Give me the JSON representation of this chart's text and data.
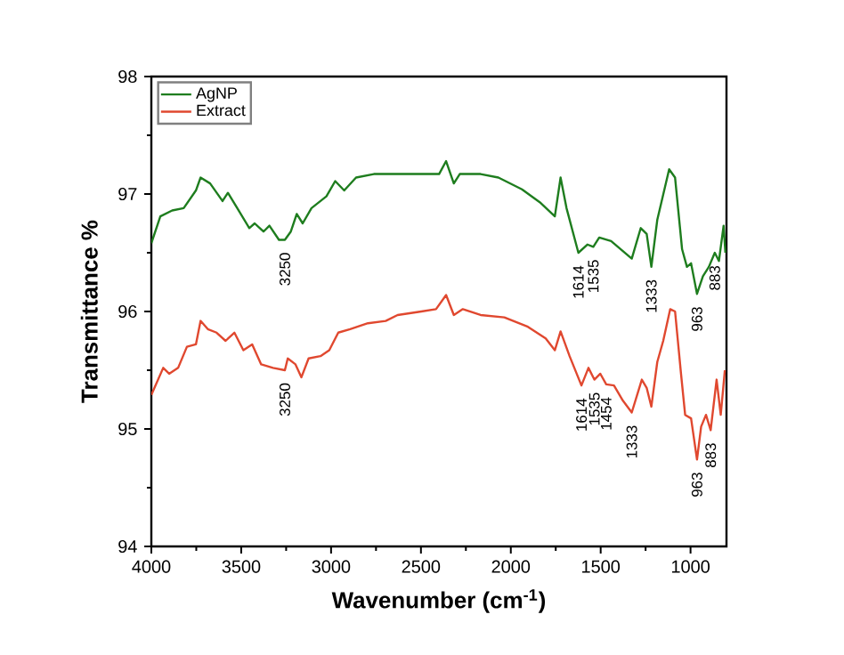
{
  "chart_data": {
    "type": "line",
    "xlabel": "Wavenumber (cm$^{-1}$)",
    "ylabel": "Transmittance %",
    "xlim": [
      4000,
      800
    ],
    "ylim": [
      94,
      98
    ],
    "xticks": [
      4000,
      3500,
      3000,
      2500,
      2000,
      1500,
      1000
    ],
    "yticks": [
      94,
      95,
      96,
      97,
      98
    ],
    "legend": "top left",
    "line_style": "solid",
    "series": [
      {
        "name": "AgNP",
        "color": "#1e7d1e",
        "x": [
          4000,
          3950,
          3884,
          3820,
          3752,
          3726,
          3673,
          3604,
          3574,
          3522,
          3455,
          3425,
          3376,
          3343,
          3290,
          3257,
          3224,
          3191,
          3158,
          3109,
          3026,
          2977,
          2927,
          2861,
          2762,
          2597,
          2399,
          2360,
          2317,
          2284,
          2267,
          2168,
          2069,
          1938,
          1839,
          1755,
          1723,
          1690,
          1624,
          1574,
          1541,
          1508,
          1442,
          1327,
          1277,
          1244,
          1218,
          1185,
          1119,
          1086,
          1047,
          1020,
          997,
          964,
          931,
          898,
          865,
          842,
          816,
          806
        ],
        "values": [
          96.58,
          96.81,
          96.86,
          96.88,
          97.03,
          97.14,
          97.09,
          96.94,
          97.01,
          96.88,
          96.71,
          96.75,
          96.68,
          96.73,
          96.61,
          96.61,
          96.68,
          96.83,
          96.75,
          96.88,
          96.98,
          97.11,
          97.03,
          97.14,
          97.17,
          97.17,
          97.17,
          97.28,
          97.09,
          97.17,
          97.17,
          97.17,
          97.14,
          97.04,
          96.93,
          96.81,
          97.14,
          96.88,
          96.5,
          96.57,
          96.55,
          96.63,
          96.6,
          96.45,
          96.71,
          96.66,
          96.38,
          96.78,
          97.21,
          97.14,
          96.53,
          96.38,
          96.41,
          96.15,
          96.3,
          96.38,
          96.5,
          96.43,
          96.73,
          96.5
        ]
      },
      {
        "name": "Extract",
        "color": "#e0482f",
        "x": [
          4000,
          3934,
          3901,
          3851,
          3802,
          3752,
          3726,
          3686,
          3637,
          3587,
          3538,
          3488,
          3439,
          3389,
          3323,
          3257,
          3241,
          3198,
          3165,
          3125,
          3059,
          3010,
          2960,
          2894,
          2795,
          2696,
          2630,
          2498,
          2416,
          2360,
          2317,
          2267,
          2168,
          2036,
          1905,
          1806,
          1755,
          1723,
          1673,
          1607,
          1568,
          1535,
          1502,
          1469,
          1426,
          1376,
          1327,
          1271,
          1244,
          1218,
          1185,
          1152,
          1113,
          1086,
          1053,
          1030,
          997,
          964,
          941,
          914,
          888,
          855,
          832,
          809
        ],
        "values": [
          95.29,
          95.52,
          95.47,
          95.52,
          95.7,
          95.72,
          95.92,
          95.85,
          95.82,
          95.75,
          95.82,
          95.67,
          95.72,
          95.55,
          95.52,
          95.5,
          95.6,
          95.55,
          95.44,
          95.6,
          95.62,
          95.67,
          95.82,
          95.85,
          95.9,
          95.92,
          95.97,
          96.0,
          96.02,
          96.14,
          95.97,
          96.02,
          95.97,
          95.95,
          95.87,
          95.77,
          95.67,
          95.83,
          95.62,
          95.37,
          95.52,
          95.42,
          95.47,
          95.38,
          95.37,
          95.24,
          95.14,
          95.42,
          95.35,
          95.19,
          95.57,
          95.75,
          96.02,
          96.0,
          95.47,
          95.12,
          95.09,
          94.74,
          95.02,
          95.12,
          94.99,
          95.42,
          95.12,
          95.5
        ]
      }
    ],
    "annotations": [
      {
        "text": "3250",
        "x": 3257,
        "y": 96.61
      },
      {
        "text": "1614",
        "x": 1624,
        "y": 96.5
      },
      {
        "text": "1535",
        "x": 1541,
        "y": 96.55
      },
      {
        "text": "1333",
        "x": 1218,
        "y": 96.38
      },
      {
        "text": "963",
        "x": 964,
        "y": 96.15
      },
      {
        "text": "883",
        "x": 865,
        "y": 96.5
      },
      {
        "text": "3250",
        "x": 3257,
        "y": 95.5
      },
      {
        "text": "1614",
        "x": 1607,
        "y": 95.37
      },
      {
        "text": "1535",
        "x": 1535,
        "y": 95.42
      },
      {
        "text": "1454",
        "x": 1469,
        "y": 95.38
      },
      {
        "text": "1333",
        "x": 1327,
        "y": 95.14
      },
      {
        "text": "963",
        "x": 964,
        "y": 94.74
      },
      {
        "text": "883",
        "x": 888,
        "y": 94.99
      }
    ]
  }
}
